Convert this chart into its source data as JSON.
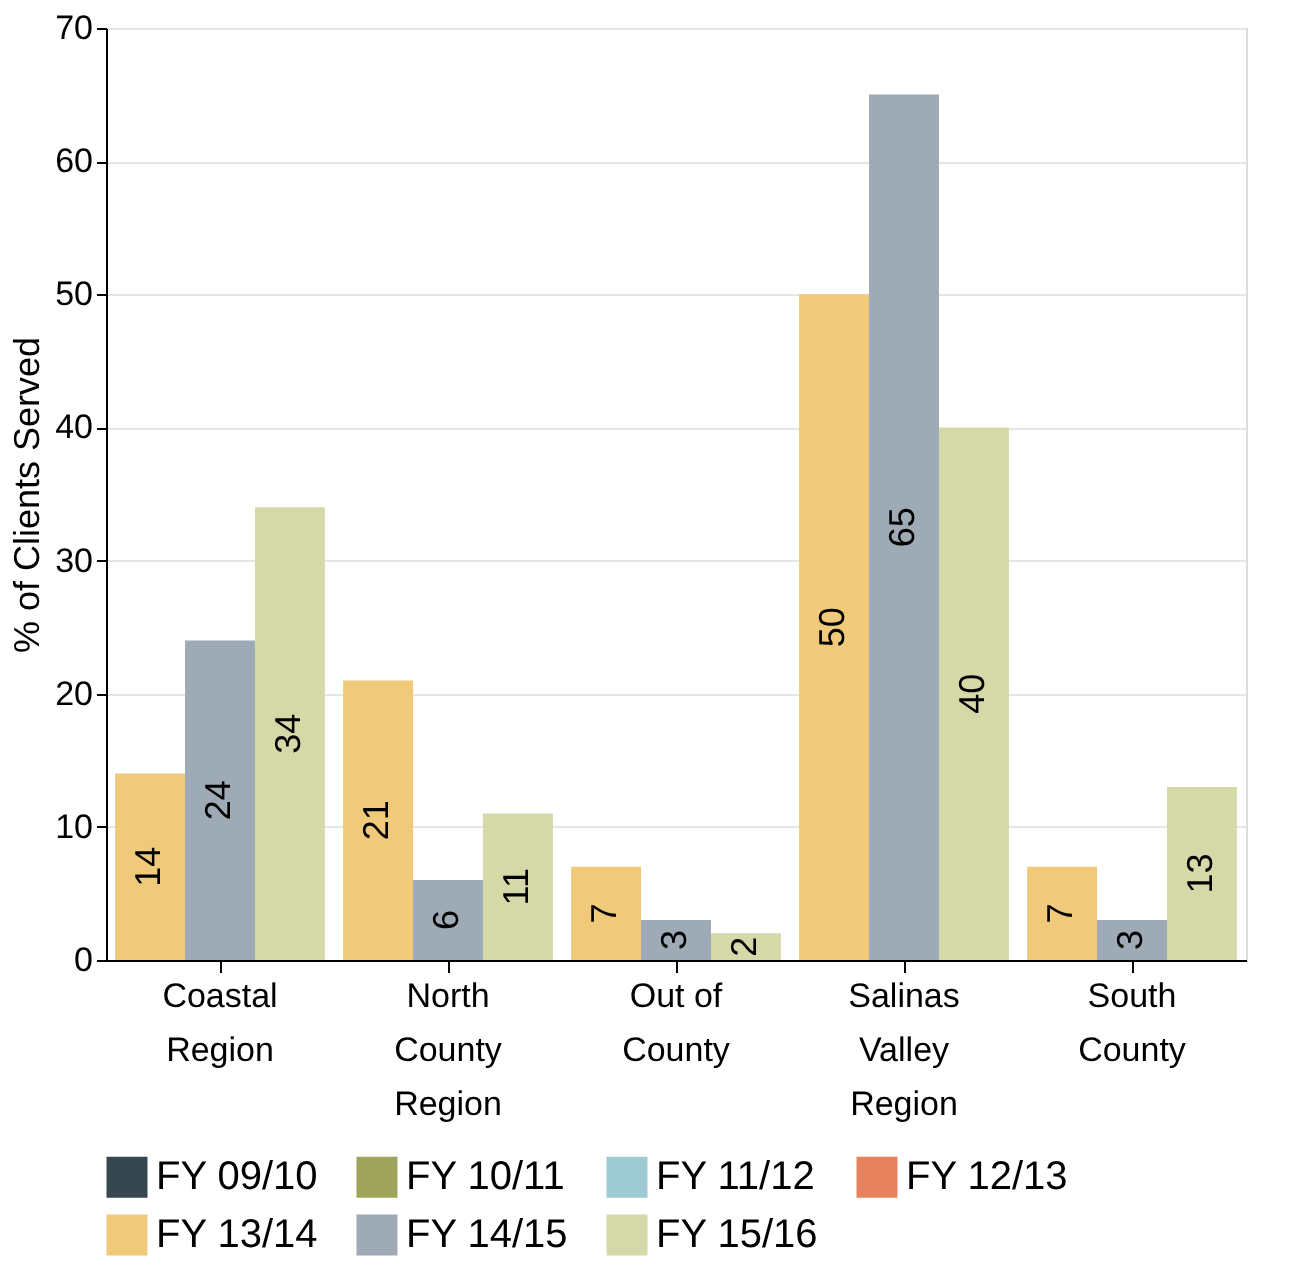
{
  "chart_data": {
    "type": "bar",
    "ylabel": "% of Clients Served",
    "categories": [
      "Coastal\nRegion",
      "North\nCounty\nRegion",
      "Out of\nCounty",
      "Salinas\nValley\nRegion",
      "South\nCounty"
    ],
    "series": [
      {
        "name": "FY 09/10",
        "color": "#37474f",
        "values": [
          null,
          null,
          null,
          null,
          null
        ]
      },
      {
        "name": "FY 10/11",
        "color": "#9ea55a",
        "values": [
          null,
          null,
          null,
          null,
          null
        ]
      },
      {
        "name": "FY 11/12",
        "color": "#9ecbd3",
        "values": [
          null,
          null,
          null,
          null,
          null
        ]
      },
      {
        "name": "FY 12/13",
        "color": "#e8825e",
        "values": [
          null,
          null,
          null,
          null,
          null
        ]
      },
      {
        "name": "FY 13/14",
        "color": "#f0c97a",
        "values": [
          14,
          21,
          7,
          50,
          7
        ]
      },
      {
        "name": "FY 14/15",
        "color": "#9eaab5",
        "values": [
          24,
          6,
          3,
          65,
          3
        ]
      },
      {
        "name": "FY 15/16",
        "color": "#d5d9a8",
        "values": [
          34,
          11,
          2,
          40,
          13
        ]
      }
    ],
    "ylim": [
      0,
      70
    ],
    "yticks": [
      0,
      10,
      20,
      30,
      40,
      50,
      60,
      70
    ],
    "grid": "y",
    "legend": "bottom",
    "data_labels": true
  }
}
